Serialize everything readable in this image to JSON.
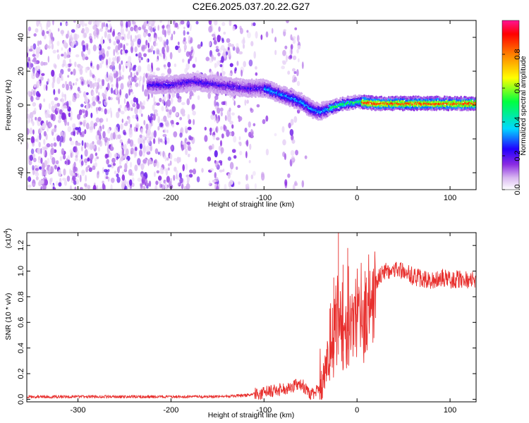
{
  "title": "C2E6.2025.037.20.22.G27",
  "chart_data": [
    {
      "type": "heatmap",
      "name": "spectrogram",
      "xlabel": "Height of straight line (km)",
      "ylabel": "Frequency (Hz)",
      "xlim": [
        -355,
        128
      ],
      "ylim": [
        -50,
        50
      ],
      "x_ticks": [
        -300,
        -200,
        -100,
        0,
        100
      ],
      "y_ticks": [
        -40,
        -20,
        0,
        20,
        40
      ],
      "colorbar": {
        "label": "Normalized spectral amplitude",
        "range": [
          0,
          1
        ],
        "ticks": [
          "0.0",
          "0.2",
          "0.4",
          "0.6",
          "0.8"
        ],
        "tick_values": [
          0,
          0.2,
          0.4,
          0.6,
          0.8
        ],
        "colors": [
          "#ffffff",
          "#d9b8f0",
          "#8a2be2",
          "#2200ff",
          "#00d8ff",
          "#00ff40",
          "#ffff00",
          "#ff7f00",
          "#ff0000",
          "#ff1493"
        ]
      },
      "ridge_center_hz": [
        [
          -225,
          12
        ],
        [
          -200,
          12
        ],
        [
          -175,
          14
        ],
        [
          -150,
          12
        ],
        [
          -120,
          10
        ],
        [
          -100,
          10
        ],
        [
          -80,
          6
        ],
        [
          -60,
          2
        ],
        [
          -50,
          -2
        ],
        [
          -40,
          -4
        ],
        [
          -30,
          -2
        ],
        [
          -20,
          0
        ],
        [
          -10,
          1
        ],
        [
          0,
          2
        ],
        [
          20,
          1
        ],
        [
          60,
          1
        ],
        [
          100,
          1
        ],
        [
          128,
          1
        ]
      ],
      "noise_region_km": [
        -355,
        -55
      ],
      "gap_regions_km": [
        [
          -175,
          -160
        ],
        [
          -108,
          -80
        ],
        [
          -62,
          -55
        ]
      ]
    },
    {
      "type": "line",
      "name": "snr",
      "xlabel": "Height of straight line (km)",
      "ylabel": "SNR (10 * v/v)",
      "multiplier": "(x10",
      "multiplier_exp": "4",
      "xlim": [
        -355,
        128
      ],
      "ylim": [
        -0.02,
        1.3
      ],
      "x_ticks": [
        -300,
        -200,
        -100,
        0,
        100
      ],
      "y_ticks": [
        "0.0",
        "0.2",
        "0.4",
        "0.6",
        "0.8",
        "1.0",
        "1.2"
      ],
      "y_tick_values": [
        0,
        0.2,
        0.4,
        0.6,
        0.8,
        1.0,
        1.2
      ],
      "color": "#e8302e",
      "envelope": [
        [
          -355,
          0.02
        ],
        [
          -300,
          0.02
        ],
        [
          -200,
          0.02
        ],
        [
          -150,
          0.02
        ],
        [
          -120,
          0.03
        ],
        [
          -100,
          0.05
        ],
        [
          -80,
          0.08
        ],
        [
          -70,
          0.1
        ],
        [
          -60,
          0.12
        ],
        [
          -55,
          0.08
        ],
        [
          -50,
          0.03
        ],
        [
          -45,
          0.05
        ],
        [
          -40,
          0.12
        ],
        [
          -35,
          0.25
        ],
        [
          -30,
          0.45
        ],
        [
          -25,
          0.55
        ],
        [
          -20,
          0.7
        ],
        [
          -15,
          0.75
        ],
        [
          -10,
          0.78
        ],
        [
          0,
          0.8
        ],
        [
          10,
          0.85
        ],
        [
          20,
          0.92
        ],
        [
          30,
          1.0
        ],
        [
          40,
          1.02
        ],
        [
          50,
          1.0
        ],
        [
          60,
          0.96
        ],
        [
          70,
          0.94
        ],
        [
          80,
          0.92
        ],
        [
          90,
          0.95
        ],
        [
          100,
          0.93
        ],
        [
          110,
          0.94
        ],
        [
          120,
          0.93
        ],
        [
          128,
          0.92
        ]
      ],
      "spikes": [
        [
          -20,
          1.3
        ],
        [
          -10,
          1.18
        ],
        [
          -15,
          1.05
        ],
        [
          -25,
          0.95
        ],
        [
          10,
          0.95
        ]
      ]
    }
  ]
}
